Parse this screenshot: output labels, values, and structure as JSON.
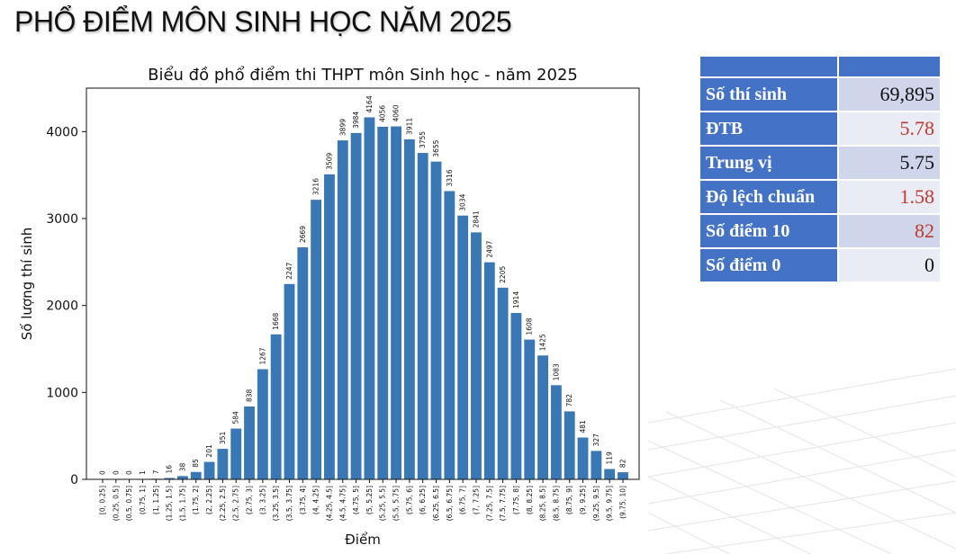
{
  "page": {
    "title": "PHỔ ĐIỂM MÔN SINH HỌC NĂM 2025"
  },
  "chart_data": {
    "type": "bar",
    "title": "Biểu đồ phổ điểm thi THPT môn Sinh học - năm 2025",
    "xlabel": "Điểm",
    "ylabel": "Số lượng thí sinh",
    "ylim": [
      0,
      4500
    ],
    "yticks": [
      "0",
      "1000",
      "2000",
      "3000",
      "4000"
    ],
    "bar_color": "#3a78b5",
    "categories": [
      "[0, 0.25]",
      "(0.25, 0.5]",
      "(0.5, 0.75]",
      "(0.75, 1]",
      "(1, 1.25]",
      "(1.25, 1.5]",
      "(1.5, 1.75]",
      "(1.75, 2]",
      "(2, 2.25]",
      "(2.25, 2.5]",
      "(2.5, 2.75]",
      "(2.75, 3]",
      "(3, 3.25]",
      "(3.25, 3.5]",
      "(3.5, 3.75]",
      "(3.75, 4]",
      "(4, 4.25]",
      "(4.25, 4.5]",
      "(4.5, 4.75]",
      "(4.75, 5]",
      "(5, 5.25]",
      "(5.25, 5.5]",
      "(5.5, 5.75]",
      "(5.75, 6]",
      "(6, 6.25]",
      "(6.25, 6.5]",
      "(6.5, 6.75]",
      "(6.75, 7]",
      "(7, 7.25]",
      "(7.25, 7.5]",
      "(7.5, 7.75]",
      "(7.75, 8]",
      "(8, 8.25]",
      "(8.25, 8.5]",
      "(8.5, 8.75]",
      "(8.75, 9]",
      "(9, 9.25]",
      "(9.25, 9.5]",
      "(9.5, 9.75]",
      "(9.75, 10]"
    ],
    "values": [
      0,
      0,
      0,
      1,
      7,
      16,
      38,
      85,
      201,
      351,
      584,
      838,
      1267,
      1668,
      2247,
      2669,
      3216,
      3509,
      3899,
      3984,
      4164,
      4056,
      4060,
      3911,
      3755,
      3655,
      3316,
      3034,
      2841,
      2497,
      2205,
      1914,
      1608,
      1425,
      1083,
      782,
      481,
      327,
      119,
      82
    ]
  },
  "stats": {
    "header_color": "#4472c4",
    "rows": [
      {
        "label": "Số thí sinh",
        "value": "69,895",
        "color": "#111111"
      },
      {
        "label": "ĐTB",
        "value": "5.78",
        "color": "#c0392b"
      },
      {
        "label": "Trung vị",
        "value": "5.75",
        "color": "#111111"
      },
      {
        "label": "Độ lệch chuẩn",
        "value": "1.58",
        "color": "#c0392b"
      },
      {
        "label": "Số điểm 10",
        "value": "82",
        "color": "#c0392b"
      },
      {
        "label": "Số điểm 0",
        "value": "0",
        "color": "#111111"
      }
    ]
  }
}
